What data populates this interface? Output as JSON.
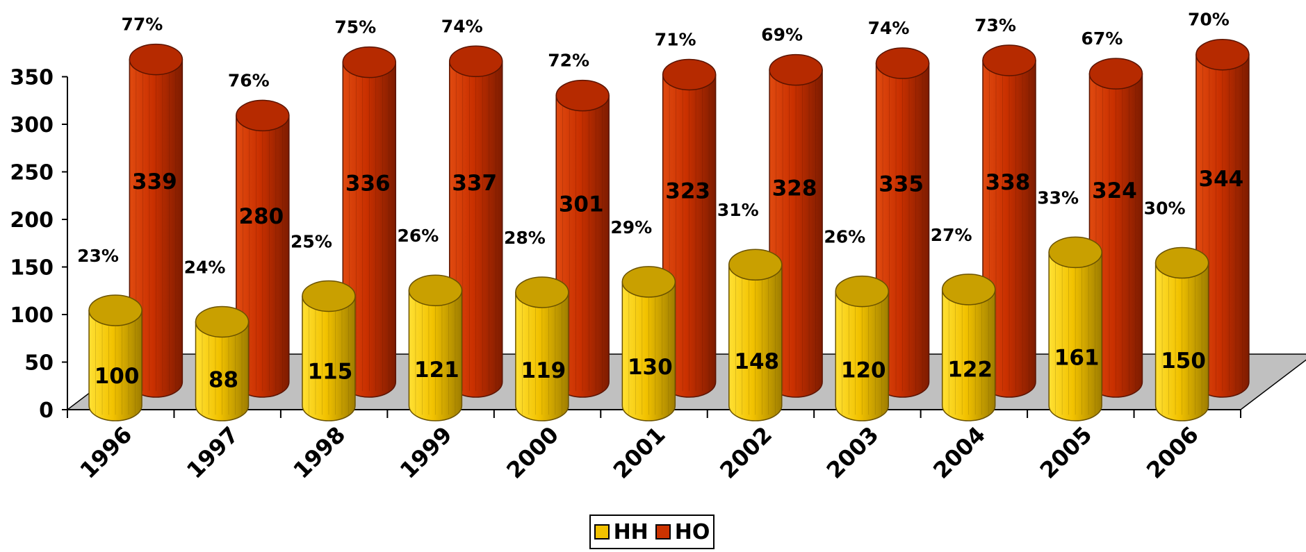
{
  "chart_data": {
    "type": "bar",
    "style": "3d-cylinder",
    "categories": [
      "1996",
      "1997",
      "1998",
      "1999",
      "2000",
      "2001",
      "2002",
      "2003",
      "2004",
      "2005",
      "2006"
    ],
    "series": [
      {
        "name": "HH",
        "color": "#F2C200",
        "values": [
          100,
          88,
          115,
          121,
          119,
          130,
          148,
          120,
          122,
          161,
          150
        ],
        "percent_labels": [
          "23%",
          "24%",
          "25%",
          "26%",
          "28%",
          "29%",
          "31%",
          "26%",
          "27%",
          "33%",
          "30%"
        ]
      },
      {
        "name": "HO",
        "color": "#CC3300",
        "values": [
          339,
          280,
          336,
          337,
          301,
          323,
          328,
          335,
          338,
          324,
          344
        ],
        "percent_labels": [
          "77%",
          "76%",
          "75%",
          "74%",
          "72%",
          "71%",
          "69%",
          "74%",
          "73%",
          "67%",
          "70%"
        ]
      }
    ],
    "y_ticks": [
      "0",
      "50",
      "100",
      "150",
      "200",
      "250",
      "300",
      "350"
    ],
    "ylim": [
      0,
      350
    ],
    "grid": false,
    "floor_color": "#C0C0C0",
    "legend_position": "bottom-center"
  }
}
